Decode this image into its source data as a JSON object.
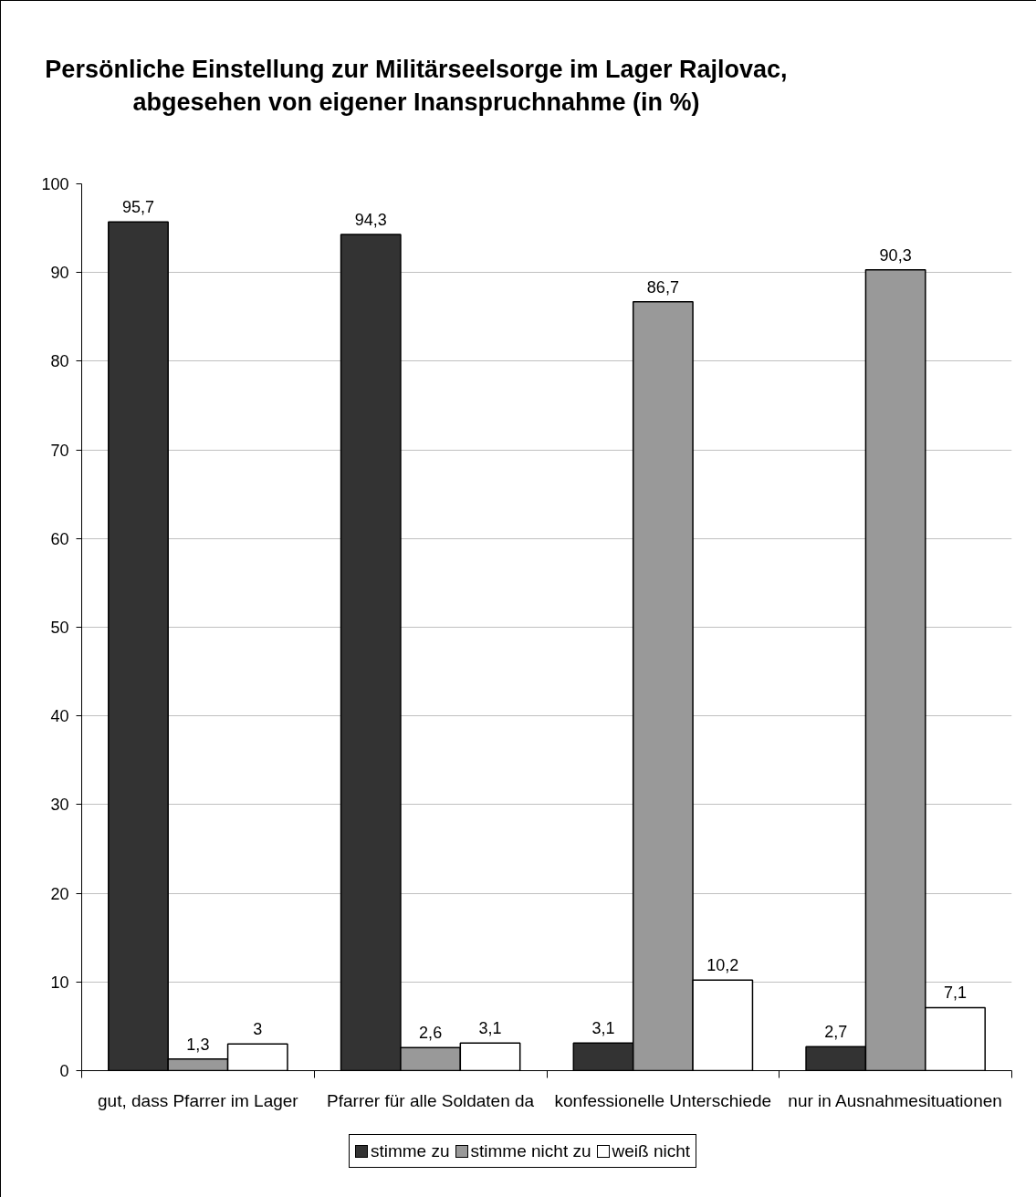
{
  "chart_data": {
    "type": "bar",
    "title": "Persönliche Einstellung zur Militärseelsorge im Lager Rajlovac, abgesehen von eigener Inanspruchnahme (in %)",
    "categories": [
      "gut, dass Pfarrer im Lager",
      "Pfarrer für alle Soldaten da",
      "konfessionelle Unterschiede",
      "nur in Ausnahmesituationen"
    ],
    "series": [
      {
        "name": "stimme zu",
        "color": "#333333",
        "values": [
          95.7,
          94.3,
          3.1,
          2.7
        ],
        "value_labels": [
          "95,7",
          "94,3",
          "3,1",
          "2,7"
        ]
      },
      {
        "name": "stimme nicht zu",
        "color": "#999999",
        "values": [
          1.3,
          2.6,
          86.7,
          90.3
        ],
        "value_labels": [
          "1,3",
          "2,6",
          "86,7",
          "90,3"
        ]
      },
      {
        "name": "weiß nicht",
        "color": "#ffffff",
        "values": [
          3,
          3.1,
          10.2,
          7.1
        ],
        "value_labels": [
          "3",
          "3,1",
          "10,2",
          "7,1"
        ]
      }
    ],
    "ylim": [
      0,
      100
    ],
    "yticks": [
      0,
      10,
      20,
      30,
      40,
      50,
      60,
      70,
      80,
      90,
      100
    ],
    "grid": "y",
    "legend": "bottom"
  }
}
